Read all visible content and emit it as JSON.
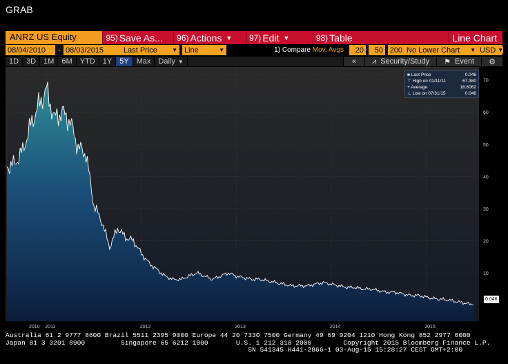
{
  "window_title": "GRAB",
  "toolbar": {
    "ticker": "ANRZ US Equity",
    "save": {
      "num": "95)",
      "label": "Save As..."
    },
    "actions": {
      "num": "96)",
      "label": "Actions"
    },
    "edit": {
      "num": "97)",
      "label": "Edit"
    },
    "table": {
      "num": "98)",
      "label": "Table"
    },
    "chart_type": "Line Chart"
  },
  "params": {
    "start_date": "08/04/2010",
    "sep": "-",
    "end_date": "08/03/2015",
    "field": "Last Price",
    "style": "Line",
    "compare_num": "1)",
    "compare": "Compare",
    "mov_avgs": "Mov. Avgs",
    "ma1": "20",
    "ma2": "50",
    "ma3": "200",
    "lower_chart": "No Lower Chart",
    "currency": "USD"
  },
  "periods": [
    "1D",
    "3D",
    "1M",
    "6M",
    "YTD",
    "1Y",
    "5Y",
    "Max"
  ],
  "active_period": "5Y",
  "frequency": "Daily",
  "tools": {
    "collapse": "«",
    "security_study": "Security/Study",
    "event": "Event",
    "gear": "⚙"
  },
  "legend": {
    "last_price_label": "Last Price",
    "last_price": "0.046",
    "high_label": "High on 01/11/11",
    "high": "67.380",
    "avg_label": "Average",
    "avg": "16.6062",
    "low_label": "Low on 07/31/15",
    "low": "0.046"
  },
  "last_price_badge": "0.046",
  "chart_data": {
    "type": "area",
    "y_ticks": [
      10,
      20,
      30,
      40,
      50,
      60,
      70
    ],
    "x_ticks": [
      "2010",
      "2011",
      "2012",
      "2013",
      "2014",
      "2015"
    ],
    "ylim": [
      -5,
      74
    ],
    "x": [
      "2010-08",
      "2010-09",
      "2010-10",
      "2010-11",
      "2010-12",
      "2011-01",
      "2011-02",
      "2011-03",
      "2011-04",
      "2011-05",
      "2011-06",
      "2011-07",
      "2011-08",
      "2011-09",
      "2011-10",
      "2011-11",
      "2011-12",
      "2012-01",
      "2012-02",
      "2012-03",
      "2012-04",
      "2012-05",
      "2012-06",
      "2012-07",
      "2012-08",
      "2012-09",
      "2012-10",
      "2012-11",
      "2012-12",
      "2013-01",
      "2013-02",
      "2013-03",
      "2013-04",
      "2013-05",
      "2013-06",
      "2013-07",
      "2013-08",
      "2013-09",
      "2013-10",
      "2013-11",
      "2013-12",
      "2014-01",
      "2014-02",
      "2014-03",
      "2014-04",
      "2014-05",
      "2014-06",
      "2014-07",
      "2014-08",
      "2014-09",
      "2014-10",
      "2014-11",
      "2014-12",
      "2015-01",
      "2015-02",
      "2015-03",
      "2015-04",
      "2015-05",
      "2015-06",
      "2015-07"
    ],
    "series": [
      {
        "values": [
          43,
          44,
          48,
          56,
          62,
          67,
          58,
          60,
          57,
          49,
          47,
          31,
          26,
          18,
          24,
          21,
          20,
          16,
          13,
          11,
          9,
          8,
          8,
          9,
          10,
          9,
          8,
          9,
          10,
          9,
          8.5,
          8,
          8,
          7.5,
          7,
          6.5,
          6,
          6,
          6,
          6.5,
          7,
          6.5,
          6,
          5.5,
          5.5,
          5,
          5,
          4.5,
          4,
          4,
          3.5,
          3,
          3,
          2.5,
          2,
          1.8,
          1.5,
          1,
          0.6,
          0.046
        ]
      }
    ]
  },
  "footer": {
    "line1": "Australia 61 2 9777 8600 Brazil 5511 2395 9000 Europe 44 20 7330 7500 Germany 49 69 9204 1210 Hong Kong 852 2977 6000",
    "line2": "Japan 81 3 3201 8900         Singapore 65 6212 1000       U.S. 1 212 318 2000        Copyright 2015 Bloomberg Finance L.P.",
    "line3": "                                                             SN 541345 H441-2866-1 03-Aug-15 15:28:27 CEST GMT+2:00"
  }
}
